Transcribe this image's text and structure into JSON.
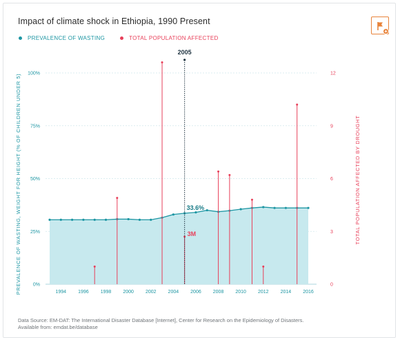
{
  "title": "Impact of climate shock in Ethiopia, 1990 Present",
  "colors": {
    "wasting": "#1d96a3",
    "wasting_fill": "#c7e9ee",
    "population": "#e8405a",
    "flag": "#e8833a",
    "highlight": "#1f3340"
  },
  "flag_button": {
    "icon": "flag-icon"
  },
  "legend": [
    {
      "label": "PREVALENCE OF WASTING",
      "color": "#1d96a3"
    },
    {
      "label": "TOTAL POPULATION AFFECTED",
      "color": "#e8405a"
    }
  ],
  "source": {
    "line1": "Data Source: EM-DAT: The International Disaster Database [Internet], Center for Research on the Epidemiology of Disasters.",
    "line2": "Available from: emdat.be/database"
  },
  "chart_data": {
    "type": "line",
    "title": "Impact of climate shock in Ethiopia, 1990 Present",
    "xlabel": "",
    "ylabel_left": "PREVALENCE OF WASTING, WEIGHT FOR HEIGHT (% OF CHILDREN UNDER 5)",
    "ylabel_right": "TOTAL POPULATION AFFECTED BY DROUGHT",
    "xlim": [
      1993,
      2016
    ],
    "ylim_left": [
      0,
      100
    ],
    "ylim_right": [
      0,
      12
    ],
    "x_ticks": [
      "1994",
      "1996",
      "1998",
      "2000",
      "2002",
      "2004",
      "2006",
      "2008",
      "2010",
      "2012",
      "2014",
      "2016"
    ],
    "y_left_ticks": [
      "0%",
      "25%",
      "50%",
      "75%",
      "100%"
    ],
    "y_right_ticks": [
      "0",
      "3",
      "6",
      "9",
      "12"
    ],
    "grid": true,
    "legend_position": "top-left",
    "series": [
      {
        "name": "PREVALENCE OF WASTING",
        "kind": "area-line",
        "x": [
          1993,
          1994,
          1995,
          1996,
          1997,
          1998,
          1999,
          2000,
          2001,
          2002,
          2003,
          2004,
          2005,
          2006,
          2007,
          2008,
          2009,
          2010,
          2011,
          2012,
          2013,
          2014,
          2015,
          2016
        ],
        "values": [
          30.5,
          30.5,
          30.5,
          30.5,
          30.5,
          30.5,
          30.8,
          30.8,
          30.5,
          30.5,
          31.5,
          33.0,
          33.6,
          34.0,
          35.0,
          34.3,
          34.8,
          35.5,
          36.1,
          36.5,
          36.1,
          36.1,
          36.1,
          36.1
        ]
      },
      {
        "name": "TOTAL POPULATION AFFECTED",
        "kind": "stem",
        "x": [
          1997,
          1999,
          2003,
          2005,
          2008,
          2009,
          2011,
          2012,
          2015
        ],
        "values": [
          1.0,
          4.9,
          12.6,
          2.7,
          6.4,
          6.2,
          4.8,
          1.0,
          10.2
        ]
      }
    ],
    "annotations": [
      {
        "text": "2005",
        "x": 2005
      },
      {
        "text": "33.6%",
        "x": 2005,
        "series": "PREVALENCE OF WASTING"
      },
      {
        "text": "3M",
        "x": 2005,
        "series": "TOTAL POPULATION AFFECTED"
      }
    ]
  }
}
